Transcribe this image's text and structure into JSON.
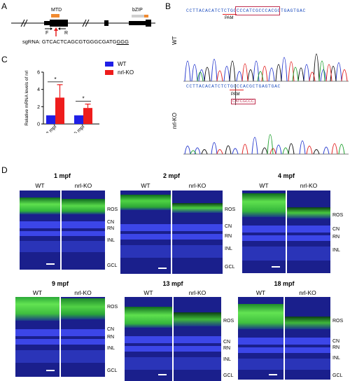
{
  "panels": {
    "a": "A",
    "b": "B",
    "c": "C",
    "d": "D"
  },
  "gene": {
    "mtd": "MTD",
    "bzip": "bZIP",
    "f": "F",
    "r": "R",
    "sgrna_prefix": "sgRNA: GTCACTCAGCGTGGGCGATG",
    "sgrna_pam": "GGG"
  },
  "sequencing": {
    "wt_label": "WT",
    "ko_label": "nrl-KO",
    "wt_seq": "CCTTACACATCTCTGCCCCATCGCCCACGCTGAGTGAC",
    "wt_pam": "PAM",
    "ko_seq": "CCTTACACATCTCTGCCCACGCTGAGTGAC",
    "ko_pam": "PAM",
    "ko_deleted": "CATCGCCC"
  },
  "chart_data": {
    "type": "bar",
    "categories": [
      "2 mpf",
      "5 mpf"
    ],
    "series": [
      {
        "name": "WT",
        "values": [
          1.0,
          1.0
        ],
        "errors": [
          0,
          0
        ],
        "color": "#1f1fe6"
      },
      {
        "name": "nrl-KO",
        "values": [
          3.05,
          1.85
        ],
        "errors": [
          1.5,
          0.45
        ],
        "color": "#ee1c1c"
      }
    ],
    "ylabel": "Relative mRNA levels of nrl",
    "ylim": [
      0,
      6
    ],
    "yticks": [
      0,
      2,
      4,
      6
    ],
    "significance": [
      "*",
      "*"
    ],
    "legend_position": "top-right"
  },
  "histology": {
    "groups": [
      {
        "title": "1 mpf",
        "wt": "WT",
        "ko": "nrl-KO"
      },
      {
        "title": "2 mpf",
        "wt": "WT",
        "ko": "nrl-KO"
      },
      {
        "title": "4 mpf",
        "wt": "WT",
        "ko": "nrl-KO"
      },
      {
        "title": "9 mpf",
        "wt": "WT",
        "ko": "nrl-KO"
      },
      {
        "title": "13 mpf",
        "wt": "WT",
        "ko": "nrl-KO"
      },
      {
        "title": "18 mpf",
        "wt": "WT",
        "ko": "nrl-KO"
      }
    ],
    "layers": {
      "ros": "ROS",
      "cn": "CN",
      "rn": "RN",
      "inl": "INL",
      "gcl": "GCL"
    }
  }
}
